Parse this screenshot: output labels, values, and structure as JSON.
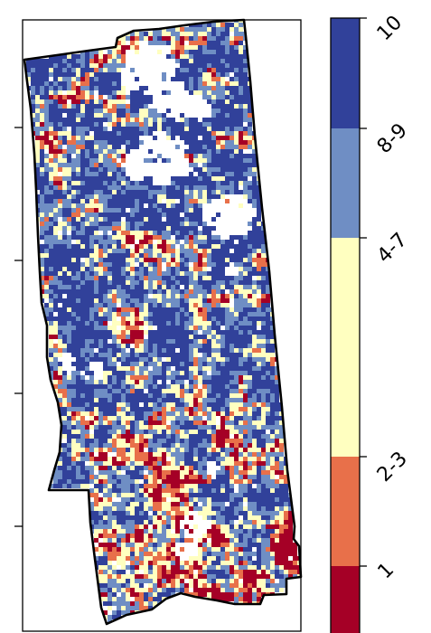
{
  "map": {
    "legend": {
      "classes": [
        {
          "label": "1",
          "color": "#a50026",
          "value_min": 1,
          "value_max": 1
        },
        {
          "label": "2-3",
          "color": "#e8704a",
          "value_min": 2,
          "value_max": 3
        },
        {
          "label": "4-7",
          "color": "#ffffc0",
          "value_min": 4,
          "value_max": 7
        },
        {
          "label": "8-9",
          "color": "#6f8ec4",
          "value_min": 8,
          "value_max": 9
        },
        {
          "label": "10",
          "color": "#31419a",
          "value_min": 10,
          "value_max": 10
        }
      ]
    },
    "y_ticks_labeled": false,
    "y_tick_count": 4,
    "colors": {
      "class_1": "#a50026",
      "class_2_3": "#e8704a",
      "class_4_7": "#ffffc0",
      "class_8_9": "#6f8ec4",
      "class_10": "#31419a",
      "boundary": "#000000",
      "no_data": "#ffffff"
    }
  }
}
